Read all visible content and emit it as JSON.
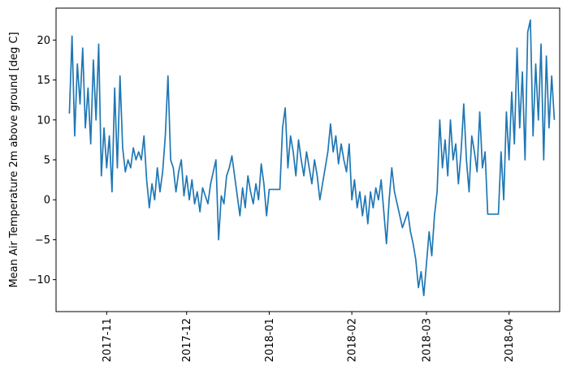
{
  "chart_data": {
    "type": "line",
    "title": "",
    "xlabel": "",
    "ylabel": "Mean Air Temperature 2m above ground [deg C]",
    "x_axis": "date",
    "xlim": [
      "2017-10-13",
      "2018-04-20"
    ],
    "ylim": [
      -14,
      24
    ],
    "x_ticks": [
      {
        "date": "2017-11-01",
        "label": "2017-11"
      },
      {
        "date": "2017-12-01",
        "label": "2017-12"
      },
      {
        "date": "2018-01-01",
        "label": "2018-01"
      },
      {
        "date": "2018-02-01",
        "label": "2018-02"
      },
      {
        "date": "2018-03-01",
        "label": "2018-03"
      },
      {
        "date": "2018-04-01",
        "label": "2018-04"
      }
    ],
    "y_ticks": [
      -10,
      -5,
      0,
      5,
      10,
      15,
      20
    ],
    "grid": false,
    "series": [
      {
        "color": "#1f77b4",
        "points": [
          [
            "2017-10-18",
            10.8
          ],
          [
            "2017-10-19",
            20.5
          ],
          [
            "2017-10-20",
            8.0
          ],
          [
            "2017-10-21",
            17.0
          ],
          [
            "2017-10-22",
            12.0
          ],
          [
            "2017-10-23",
            19.0
          ],
          [
            "2017-10-24",
            9.0
          ],
          [
            "2017-10-25",
            14.0
          ],
          [
            "2017-10-26",
            7.0
          ],
          [
            "2017-10-27",
            17.5
          ],
          [
            "2017-10-28",
            10.0
          ],
          [
            "2017-10-29",
            19.5
          ],
          [
            "2017-10-30",
            3.0
          ],
          [
            "2017-10-31",
            9.0
          ],
          [
            "2017-11-01",
            4.0
          ],
          [
            "2017-11-02",
            8.0
          ],
          [
            "2017-11-03",
            1.0
          ],
          [
            "2017-11-04",
            14.0
          ],
          [
            "2017-11-05",
            4.0
          ],
          [
            "2017-11-06",
            15.5
          ],
          [
            "2017-11-07",
            6.5
          ],
          [
            "2017-11-08",
            3.5
          ],
          [
            "2017-11-09",
            5.0
          ],
          [
            "2017-11-10",
            4.0
          ],
          [
            "2017-11-11",
            6.5
          ],
          [
            "2017-11-12",
            5.0
          ],
          [
            "2017-11-13",
            6.0
          ],
          [
            "2017-11-14",
            5.0
          ],
          [
            "2017-11-15",
            8.0
          ],
          [
            "2017-11-16",
            2.5
          ],
          [
            "2017-11-17",
            -1.0
          ],
          [
            "2017-11-18",
            2.0
          ],
          [
            "2017-11-19",
            0.0
          ],
          [
            "2017-11-20",
            4.0
          ],
          [
            "2017-11-21",
            1.0
          ],
          [
            "2017-11-22",
            3.5
          ],
          [
            "2017-11-23",
            8.0
          ],
          [
            "2017-11-24",
            15.5
          ],
          [
            "2017-11-25",
            5.0
          ],
          [
            "2017-11-26",
            4.0
          ],
          [
            "2017-11-27",
            1.0
          ],
          [
            "2017-11-28",
            3.5
          ],
          [
            "2017-11-29",
            5.0
          ],
          [
            "2017-11-30",
            0.5
          ],
          [
            "2017-12-01",
            3.0
          ],
          [
            "2017-12-02",
            0.0
          ],
          [
            "2017-12-03",
            2.5
          ],
          [
            "2017-12-04",
            -0.5
          ],
          [
            "2017-12-05",
            1.0
          ],
          [
            "2017-12-06",
            -1.5
          ],
          [
            "2017-12-07",
            1.5
          ],
          [
            "2017-12-08",
            0.5
          ],
          [
            "2017-12-09",
            -0.5
          ],
          [
            "2017-12-10",
            2.0
          ],
          [
            "2017-12-11",
            3.5
          ],
          [
            "2017-12-12",
            5.0
          ],
          [
            "2017-12-13",
            -5.0
          ],
          [
            "2017-12-14",
            0.5
          ],
          [
            "2017-12-15",
            -0.5
          ],
          [
            "2017-12-16",
            3.0
          ],
          [
            "2017-12-17",
            4.0
          ],
          [
            "2017-12-18",
            5.5
          ],
          [
            "2017-12-19",
            3.0
          ],
          [
            "2017-12-20",
            0.5
          ],
          [
            "2017-12-21",
            -2.0
          ],
          [
            "2017-12-22",
            1.5
          ],
          [
            "2017-12-23",
            -1.0
          ],
          [
            "2017-12-24",
            3.0
          ],
          [
            "2017-12-25",
            1.0
          ],
          [
            "2017-12-26",
            -0.5
          ],
          [
            "2017-12-27",
            2.0
          ],
          [
            "2017-12-28",
            0.0
          ],
          [
            "2017-12-29",
            4.5
          ],
          [
            "2017-12-30",
            2.0
          ],
          [
            "2017-12-31",
            -2.0
          ],
          [
            "2018-01-01",
            1.3
          ],
          [
            "2018-01-02",
            1.3
          ],
          [
            "2018-01-03",
            1.3
          ],
          [
            "2018-01-04",
            1.3
          ],
          [
            "2018-01-05",
            1.3
          ],
          [
            "2018-01-06",
            9.0
          ],
          [
            "2018-01-07",
            11.5
          ],
          [
            "2018-01-08",
            4.0
          ],
          [
            "2018-01-09",
            8.0
          ],
          [
            "2018-01-10",
            6.0
          ],
          [
            "2018-01-11",
            3.0
          ],
          [
            "2018-01-12",
            7.5
          ],
          [
            "2018-01-13",
            5.0
          ],
          [
            "2018-01-14",
            3.0
          ],
          [
            "2018-01-15",
            6.0
          ],
          [
            "2018-01-16",
            4.0
          ],
          [
            "2018-01-17",
            2.0
          ],
          [
            "2018-01-18",
            5.0
          ],
          [
            "2018-01-19",
            3.0
          ],
          [
            "2018-01-20",
            0.0
          ],
          [
            "2018-01-21",
            2.0
          ],
          [
            "2018-01-22",
            4.0
          ],
          [
            "2018-01-23",
            6.0
          ],
          [
            "2018-01-24",
            9.5
          ],
          [
            "2018-01-25",
            6.0
          ],
          [
            "2018-01-26",
            8.0
          ],
          [
            "2018-01-27",
            4.5
          ],
          [
            "2018-01-28",
            7.0
          ],
          [
            "2018-01-29",
            5.0
          ],
          [
            "2018-01-30",
            3.5
          ],
          [
            "2018-01-31",
            7.0
          ],
          [
            "2018-02-01",
            0.0
          ],
          [
            "2018-02-02",
            2.5
          ],
          [
            "2018-02-03",
            -1.0
          ],
          [
            "2018-02-04",
            1.0
          ],
          [
            "2018-02-05",
            -2.0
          ],
          [
            "2018-02-06",
            0.5
          ],
          [
            "2018-02-07",
            -3.0
          ],
          [
            "2018-02-08",
            1.0
          ],
          [
            "2018-02-09",
            -1.0
          ],
          [
            "2018-02-10",
            1.5
          ],
          [
            "2018-02-11",
            0.0
          ],
          [
            "2018-02-12",
            2.5
          ],
          [
            "2018-02-13",
            -1.5
          ],
          [
            "2018-02-14",
            -5.5
          ],
          [
            "2018-02-15",
            0.0
          ],
          [
            "2018-02-16",
            4.0
          ],
          [
            "2018-02-17",
            1.0
          ],
          [
            "2018-02-18",
            -0.5
          ],
          [
            "2018-02-19",
            -2.0
          ],
          [
            "2018-02-20",
            -3.5
          ],
          [
            "2018-02-21",
            -2.5
          ],
          [
            "2018-02-22",
            -1.5
          ],
          [
            "2018-02-23",
            -4.0
          ],
          [
            "2018-02-24",
            -5.5
          ],
          [
            "2018-02-25",
            -7.5
          ],
          [
            "2018-02-26",
            -11.0
          ],
          [
            "2018-02-27",
            -9.0
          ],
          [
            "2018-02-28",
            -12.0
          ],
          [
            "2018-03-01",
            -8.0
          ],
          [
            "2018-03-02",
            -4.0
          ],
          [
            "2018-03-03",
            -7.0
          ],
          [
            "2018-03-04",
            -2.0
          ],
          [
            "2018-03-05",
            1.0
          ],
          [
            "2018-03-06",
            10.0
          ],
          [
            "2018-03-07",
            4.0
          ],
          [
            "2018-03-08",
            7.5
          ],
          [
            "2018-03-09",
            3.0
          ],
          [
            "2018-03-10",
            10.0
          ],
          [
            "2018-03-11",
            5.0
          ],
          [
            "2018-03-12",
            7.0
          ],
          [
            "2018-03-13",
            2.0
          ],
          [
            "2018-03-14",
            6.0
          ],
          [
            "2018-03-15",
            12.0
          ],
          [
            "2018-03-16",
            5.0
          ],
          [
            "2018-03-17",
            1.0
          ],
          [
            "2018-03-18",
            8.0
          ],
          [
            "2018-03-19",
            6.0
          ],
          [
            "2018-03-20",
            3.5
          ],
          [
            "2018-03-21",
            11.0
          ],
          [
            "2018-03-22",
            4.0
          ],
          [
            "2018-03-23",
            6.0
          ],
          [
            "2018-03-24",
            -1.8
          ],
          [
            "2018-03-25",
            -1.8
          ],
          [
            "2018-03-26",
            -1.8
          ],
          [
            "2018-03-27",
            -1.8
          ],
          [
            "2018-03-28",
            -1.8
          ],
          [
            "2018-03-29",
            6.0
          ],
          [
            "2018-03-30",
            0.0
          ],
          [
            "2018-03-31",
            11.0
          ],
          [
            "2018-04-01",
            5.0
          ],
          [
            "2018-04-02",
            13.5
          ],
          [
            "2018-04-03",
            7.0
          ],
          [
            "2018-04-04",
            19.0
          ],
          [
            "2018-04-05",
            9.0
          ],
          [
            "2018-04-06",
            16.0
          ],
          [
            "2018-04-07",
            5.0
          ],
          [
            "2018-04-08",
            21.0
          ],
          [
            "2018-04-09",
            22.5
          ],
          [
            "2018-04-10",
            8.0
          ],
          [
            "2018-04-11",
            17.0
          ],
          [
            "2018-04-12",
            10.0
          ],
          [
            "2018-04-13",
            19.5
          ],
          [
            "2018-04-14",
            5.0
          ],
          [
            "2018-04-15",
            18.0
          ],
          [
            "2018-04-16",
            9.0
          ],
          [
            "2018-04-17",
            15.5
          ],
          [
            "2018-04-18",
            10.0
          ]
        ]
      }
    ]
  }
}
